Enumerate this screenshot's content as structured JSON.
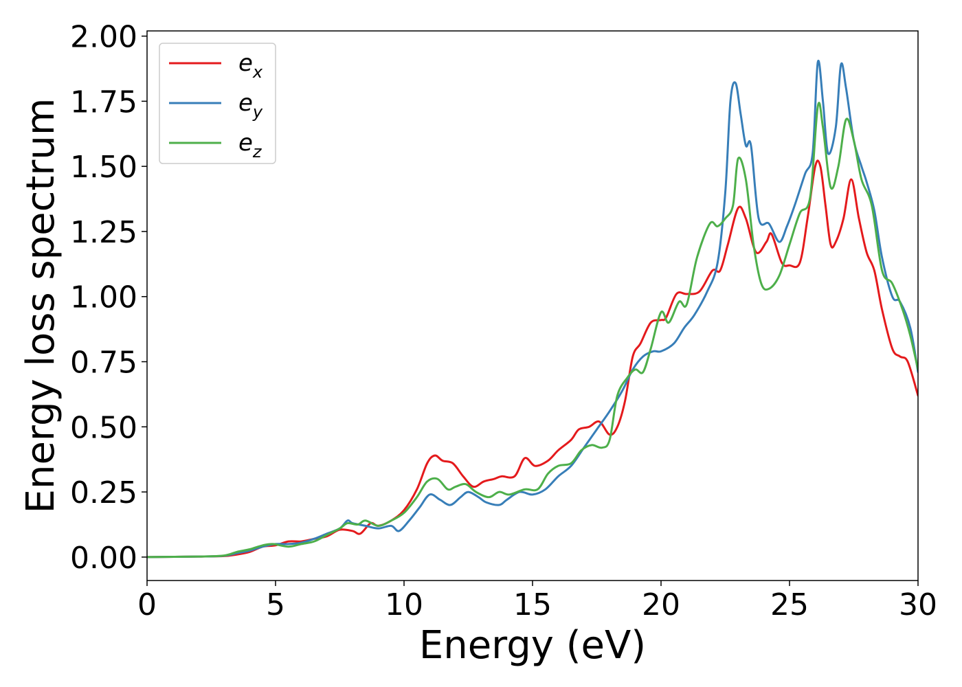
{
  "chart_data": {
    "type": "line",
    "title": "",
    "xlabel": "Energy (eV)",
    "ylabel": "Energy loss spectrum",
    "xlim": [
      0,
      30
    ],
    "ylim": [
      -0.09,
      2.02
    ],
    "xticks": [
      0,
      5,
      10,
      15,
      20,
      25,
      30
    ],
    "xtick_labels": [
      "0",
      "5",
      "10",
      "15",
      "20",
      "25",
      "30"
    ],
    "yticks": [
      0,
      0.25,
      0.5,
      0.75,
      1.0,
      1.25,
      1.5,
      1.75,
      2.0
    ],
    "ytick_labels": [
      "0.00",
      "0.25",
      "0.50",
      "0.75",
      "1.00",
      "1.25",
      "1.50",
      "1.75",
      "2.00"
    ],
    "grid": false,
    "legend_position": "top-left",
    "series": [
      {
        "name": "e",
        "subscript": "x",
        "color": "#e41a1c",
        "points": [
          [
            0,
            0
          ],
          [
            2,
            0.002
          ],
          [
            3,
            0.004
          ],
          [
            3.5,
            0.01
          ],
          [
            4,
            0.02
          ],
          [
            4.5,
            0.04
          ],
          [
            5,
            0.045
          ],
          [
            5.5,
            0.06
          ],
          [
            6,
            0.06
          ],
          [
            6.5,
            0.07
          ],
          [
            7,
            0.08
          ],
          [
            7.5,
            0.105
          ],
          [
            8,
            0.1
          ],
          [
            8.3,
            0.09
          ],
          [
            8.7,
            0.13
          ],
          [
            9,
            0.12
          ],
          [
            9.5,
            0.14
          ],
          [
            10,
            0.18
          ],
          [
            10.5,
            0.26
          ],
          [
            10.9,
            0.36
          ],
          [
            11.2,
            0.39
          ],
          [
            11.5,
            0.37
          ],
          [
            11.9,
            0.36
          ],
          [
            12.3,
            0.31
          ],
          [
            12.7,
            0.27
          ],
          [
            13.1,
            0.29
          ],
          [
            13.5,
            0.3
          ],
          [
            13.8,
            0.31
          ],
          [
            14.3,
            0.31
          ],
          [
            14.7,
            0.38
          ],
          [
            15.1,
            0.35
          ],
          [
            15.6,
            0.37
          ],
          [
            16,
            0.41
          ],
          [
            16.5,
            0.45
          ],
          [
            16.8,
            0.49
          ],
          [
            17.2,
            0.5
          ],
          [
            17.6,
            0.52
          ],
          [
            18,
            0.47
          ],
          [
            18.3,
            0.5
          ],
          [
            18.6,
            0.6
          ],
          [
            18.9,
            0.77
          ],
          [
            19.2,
            0.82
          ],
          [
            19.6,
            0.9
          ],
          [
            20,
            0.91
          ],
          [
            20.2,
            0.92
          ],
          [
            20.6,
            1.01
          ],
          [
            21,
            1.01
          ],
          [
            21.5,
            1.02
          ],
          [
            22,
            1.1
          ],
          [
            22.3,
            1.1
          ],
          [
            22.6,
            1.2
          ],
          [
            23,
            1.34
          ],
          [
            23.3,
            1.3
          ],
          [
            23.7,
            1.17
          ],
          [
            24.1,
            1.21
          ],
          [
            24.3,
            1.24
          ],
          [
            24.7,
            1.13
          ],
          [
            25,
            1.12
          ],
          [
            25.4,
            1.13
          ],
          [
            25.7,
            1.3
          ],
          [
            26,
            1.5
          ],
          [
            26.2,
            1.5
          ],
          [
            26.4,
            1.35
          ],
          [
            26.6,
            1.2
          ],
          [
            26.8,
            1.21
          ],
          [
            27.1,
            1.3
          ],
          [
            27.4,
            1.45
          ],
          [
            27.7,
            1.3
          ],
          [
            28,
            1.17
          ],
          [
            28.3,
            1.1
          ],
          [
            28.6,
            0.95
          ],
          [
            29,
            0.8
          ],
          [
            29.3,
            0.77
          ],
          [
            29.6,
            0.75
          ],
          [
            30,
            0.62
          ]
        ]
      },
      {
        "name": "e",
        "subscript": "y",
        "color": "#377eb8",
        "points": [
          [
            0,
            0
          ],
          [
            2,
            0.002
          ],
          [
            3,
            0.005
          ],
          [
            3.5,
            0.015
          ],
          [
            4,
            0.025
          ],
          [
            4.5,
            0.04
          ],
          [
            5,
            0.05
          ],
          [
            5.5,
            0.05
          ],
          [
            6,
            0.055
          ],
          [
            6.5,
            0.07
          ],
          [
            7,
            0.09
          ],
          [
            7.5,
            0.11
          ],
          [
            7.8,
            0.14
          ],
          [
            8,
            0.13
          ],
          [
            8.5,
            0.12
          ],
          [
            9,
            0.11
          ],
          [
            9.5,
            0.12
          ],
          [
            9.8,
            0.1
          ],
          [
            10.2,
            0.14
          ],
          [
            10.6,
            0.19
          ],
          [
            11,
            0.24
          ],
          [
            11.4,
            0.22
          ],
          [
            11.8,
            0.2
          ],
          [
            12.2,
            0.23
          ],
          [
            12.5,
            0.25
          ],
          [
            12.9,
            0.23
          ],
          [
            13.2,
            0.21
          ],
          [
            13.7,
            0.2
          ],
          [
            14,
            0.22
          ],
          [
            14.5,
            0.25
          ],
          [
            15,
            0.24
          ],
          [
            15.5,
            0.26
          ],
          [
            16,
            0.31
          ],
          [
            16.5,
            0.35
          ],
          [
            17,
            0.42
          ],
          [
            17.5,
            0.49
          ],
          [
            18,
            0.56
          ],
          [
            18.5,
            0.64
          ],
          [
            18.9,
            0.72
          ],
          [
            19.3,
            0.77
          ],
          [
            19.7,
            0.79
          ],
          [
            20,
            0.79
          ],
          [
            20.5,
            0.82
          ],
          [
            20.9,
            0.88
          ],
          [
            21.3,
            0.93
          ],
          [
            21.8,
            1.02
          ],
          [
            22.2,
            1.13
          ],
          [
            22.5,
            1.4
          ],
          [
            22.7,
            1.75
          ],
          [
            22.9,
            1.82
          ],
          [
            23.1,
            1.7
          ],
          [
            23.3,
            1.58
          ],
          [
            23.5,
            1.58
          ],
          [
            23.8,
            1.3
          ],
          [
            24.2,
            1.28
          ],
          [
            24.6,
            1.21
          ],
          [
            24.9,
            1.27
          ],
          [
            25.2,
            1.35
          ],
          [
            25.6,
            1.47
          ],
          [
            25.9,
            1.55
          ],
          [
            26.1,
            1.9
          ],
          [
            26.3,
            1.75
          ],
          [
            26.5,
            1.55
          ],
          [
            26.8,
            1.65
          ],
          [
            27,
            1.89
          ],
          [
            27.2,
            1.8
          ],
          [
            27.5,
            1.6
          ],
          [
            27.8,
            1.5
          ],
          [
            28,
            1.44
          ],
          [
            28.3,
            1.33
          ],
          [
            28.6,
            1.15
          ],
          [
            29,
            1.0
          ],
          [
            29.3,
            0.98
          ],
          [
            29.7,
            0.88
          ],
          [
            30,
            0.71
          ]
        ]
      },
      {
        "name": "e",
        "subscript": "z",
        "color": "#4daf4a",
        "points": [
          [
            0,
            0
          ],
          [
            2,
            0.002
          ],
          [
            3,
            0.006
          ],
          [
            3.5,
            0.02
          ],
          [
            4,
            0.03
          ],
          [
            4.5,
            0.045
          ],
          [
            4.9,
            0.05
          ],
          [
            5.5,
            0.04
          ],
          [
            6,
            0.05
          ],
          [
            6.5,
            0.06
          ],
          [
            7,
            0.085
          ],
          [
            7.5,
            0.11
          ],
          [
            7.8,
            0.13
          ],
          [
            8.2,
            0.125
          ],
          [
            8.5,
            0.14
          ],
          [
            9,
            0.12
          ],
          [
            9.5,
            0.14
          ],
          [
            10,
            0.17
          ],
          [
            10.5,
            0.23
          ],
          [
            10.9,
            0.29
          ],
          [
            11.3,
            0.3
          ],
          [
            11.7,
            0.26
          ],
          [
            12,
            0.27
          ],
          [
            12.4,
            0.28
          ],
          [
            12.8,
            0.25
          ],
          [
            13.3,
            0.23
          ],
          [
            13.7,
            0.25
          ],
          [
            14.1,
            0.24
          ],
          [
            14.7,
            0.26
          ],
          [
            15.2,
            0.26
          ],
          [
            15.6,
            0.32
          ],
          [
            16,
            0.35
          ],
          [
            16.5,
            0.36
          ],
          [
            16.9,
            0.41
          ],
          [
            17.3,
            0.43
          ],
          [
            17.7,
            0.42
          ],
          [
            18,
            0.45
          ],
          [
            18.3,
            0.62
          ],
          [
            18.7,
            0.69
          ],
          [
            19,
            0.72
          ],
          [
            19.3,
            0.71
          ],
          [
            19.6,
            0.8
          ],
          [
            20,
            0.94
          ],
          [
            20.3,
            0.9
          ],
          [
            20.7,
            0.98
          ],
          [
            21,
            0.97
          ],
          [
            21.4,
            1.15
          ],
          [
            21.9,
            1.28
          ],
          [
            22.2,
            1.27
          ],
          [
            22.5,
            1.3
          ],
          [
            22.8,
            1.35
          ],
          [
            23,
            1.53
          ],
          [
            23.3,
            1.45
          ],
          [
            23.6,
            1.2
          ],
          [
            23.9,
            1.05
          ],
          [
            24.2,
            1.03
          ],
          [
            24.6,
            1.08
          ],
          [
            25,
            1.2
          ],
          [
            25.4,
            1.32
          ],
          [
            25.8,
            1.38
          ],
          [
            26.1,
            1.73
          ],
          [
            26.3,
            1.65
          ],
          [
            26.6,
            1.42
          ],
          [
            26.9,
            1.5
          ],
          [
            27.2,
            1.68
          ],
          [
            27.5,
            1.6
          ],
          [
            27.8,
            1.45
          ],
          [
            28.2,
            1.35
          ],
          [
            28.6,
            1.1
          ],
          [
            29,
            1.05
          ],
          [
            29.4,
            0.95
          ],
          [
            29.7,
            0.85
          ],
          [
            30,
            0.72
          ]
        ]
      }
    ]
  }
}
